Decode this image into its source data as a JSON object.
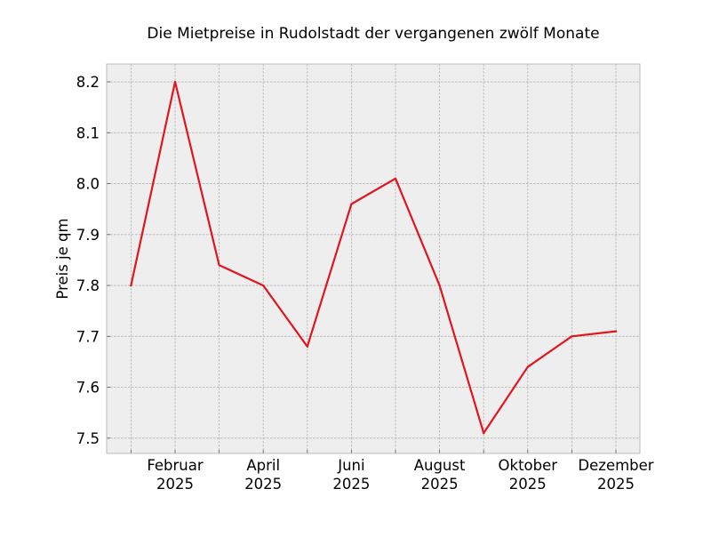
{
  "chart_data": {
    "type": "line",
    "title": "Die Mietpreise in Rudolstadt der vergangenen zwölf Monate",
    "xlabel": "",
    "ylabel": "Preis je qm",
    "x": [
      "2025-01",
      "2025-02",
      "2025-03",
      "2025-04",
      "2025-05",
      "2025-06",
      "2025-07",
      "2025-08",
      "2025-09",
      "2025-10",
      "2025-11",
      "2025-12"
    ],
    "x_tick_labels": [
      {
        "x": "2025-02",
        "month": "Februar",
        "year": "2025"
      },
      {
        "x": "2025-04",
        "month": "April",
        "year": "2025"
      },
      {
        "x": "2025-06",
        "month": "Juni",
        "year": "2025"
      },
      {
        "x": "2025-08",
        "month": "August",
        "year": "2025"
      },
      {
        "x": "2025-10",
        "month": "Oktober",
        "year": "2025"
      },
      {
        "x": "2025-12",
        "month": "Dezember",
        "year": "2025"
      }
    ],
    "series": [
      {
        "values": [
          7.8,
          8.2,
          7.84,
          7.8,
          7.68,
          7.96,
          8.01,
          7.8,
          7.51,
          7.64,
          7.7,
          7.71
        ],
        "color": "#e0151f"
      }
    ],
    "ylim": [
      7.47,
      8.235
    ],
    "y_ticks": [
      "7.5",
      "7.6",
      "7.7",
      "7.8",
      "7.9",
      "8.0",
      "8.1",
      "8.2"
    ],
    "grid": true,
    "colors": {
      "plot_background": "#eeeeee",
      "grid": "#b2b2b2",
      "frame": "#bcbcbc",
      "line": "#e0151f"
    }
  }
}
